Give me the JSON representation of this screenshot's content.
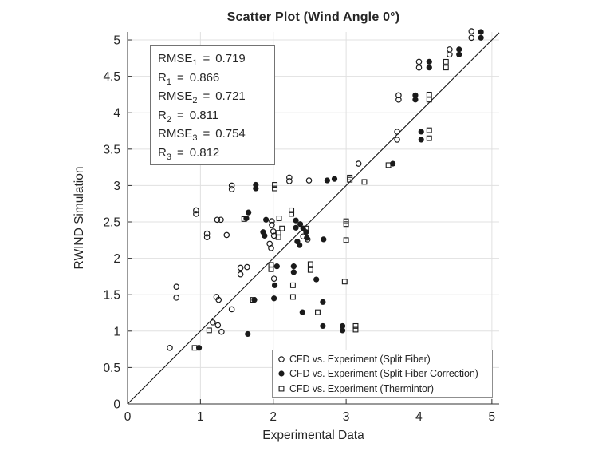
{
  "title": "Scatter Plot (Wind Angle 0°)",
  "stats_box": {
    "lines": [
      {
        "name": "RMSE",
        "sub": "1",
        "eq": "=",
        "value": "0.719"
      },
      {
        "name": "R",
        "sub": "1",
        "eq": "=",
        "value": "0.866"
      },
      {
        "name": "RMSE",
        "sub": "2",
        "eq": "=",
        "value": "0.721"
      },
      {
        "name": "R",
        "sub": "2",
        "eq": "=",
        "value": "0.811"
      },
      {
        "name": "RMSE",
        "sub": "3",
        "eq": "=",
        "value": "0.754"
      },
      {
        "name": "R",
        "sub": "3",
        "eq": "=",
        "value": "0.812"
      }
    ]
  },
  "legend": {
    "items": [
      {
        "marker": "open-circle",
        "label": "CFD vs. Experiment (Split Fiber)"
      },
      {
        "marker": "filled-circle",
        "label": "CFD vs. Experiment (Split Fiber Correction)"
      },
      {
        "marker": "open-square",
        "label": "CFD vs. Experiment (Thermintor)"
      }
    ]
  },
  "colors": {
    "text": "#262626",
    "marker": "#1a1a1a",
    "grid": "#e0e0e0",
    "axis": "#333333",
    "identity_line": "#1a1a1a",
    "stats_border": "#737373",
    "legend_border": "#8f8f8f",
    "background": "#ffffff"
  },
  "chart_data": {
    "type": "scatter",
    "title": "Scatter Plot (Wind Angle 0°)",
    "xlabel": "Experimental Data",
    "ylabel": "RWIND Simulation",
    "xlim": [
      0,
      5.1
    ],
    "ylim": [
      0,
      5.11
    ],
    "xticks": [
      0,
      1,
      2,
      3,
      4,
      5
    ],
    "yticks": [
      0,
      0.5,
      1,
      1.5,
      2,
      2.5,
      3,
      3.5,
      4,
      4.5,
      5
    ],
    "grid": true,
    "legend_position": "inside-bottom-right",
    "identity_line": {
      "from": [
        0,
        0
      ],
      "to": [
        5.1,
        5.1
      ]
    },
    "stats": {
      "RMSE1": 0.719,
      "R1": 0.866,
      "RMSE2": 0.721,
      "R2": 0.811,
      "RMSE3": 0.754,
      "R3": 0.812
    },
    "series": [
      {
        "name": "CFD vs. Experiment (Split Fiber)",
        "marker": "open-circle",
        "points": [
          [
            0.58,
            0.77
          ],
          [
            0.67,
            1.61
          ],
          [
            0.67,
            1.46
          ],
          [
            0.94,
            2.66
          ],
          [
            0.94,
            2.61
          ],
          [
            1.09,
            2.34
          ],
          [
            1.09,
            2.29
          ],
          [
            1.17,
            1.12
          ],
          [
            1.24,
            1.08
          ],
          [
            1.29,
            0.99
          ],
          [
            1.22,
            1.47
          ],
          [
            1.25,
            1.43
          ],
          [
            1.23,
            2.53
          ],
          [
            1.28,
            2.53
          ],
          [
            1.36,
            2.32
          ],
          [
            1.43,
            1.3
          ],
          [
            1.43,
            3.0
          ],
          [
            1.43,
            2.95
          ],
          [
            1.55,
            1.87
          ],
          [
            1.64,
            1.88
          ],
          [
            1.55,
            1.78
          ],
          [
            1.95,
            2.2
          ],
          [
            1.97,
            2.14
          ],
          [
            1.98,
            2.51
          ],
          [
            1.98,
            2.46
          ],
          [
            2.0,
            2.37
          ],
          [
            2.01,
            2.31
          ],
          [
            2.01,
            1.72
          ],
          [
            2.22,
            3.11
          ],
          [
            2.22,
            3.06
          ],
          [
            2.41,
            2.3
          ],
          [
            2.47,
            2.26
          ],
          [
            2.49,
            3.07
          ],
          [
            3.17,
            3.3
          ],
          [
            3.7,
            3.74
          ],
          [
            3.7,
            3.63
          ],
          [
            3.72,
            4.24
          ],
          [
            3.72,
            4.18
          ],
          [
            4.0,
            4.7
          ],
          [
            4.0,
            4.62
          ],
          [
            4.42,
            4.87
          ],
          [
            4.42,
            4.8
          ],
          [
            4.72,
            5.12
          ],
          [
            4.72,
            5.03
          ]
        ]
      },
      {
        "name": "CFD vs. Experiment (Split Fiber Correction)",
        "marker": "filled-circle",
        "points": [
          [
            0.98,
            0.77
          ],
          [
            1.63,
            2.55
          ],
          [
            1.65,
            0.96
          ],
          [
            1.66,
            2.63
          ],
          [
            1.74,
            1.43
          ],
          [
            1.76,
            3.01
          ],
          [
            1.76,
            2.96
          ],
          [
            1.86,
            2.36
          ],
          [
            1.88,
            2.31
          ],
          [
            1.9,
            2.53
          ],
          [
            2.02,
            1.63
          ],
          [
            2.01,
            1.45
          ],
          [
            2.05,
            1.89
          ],
          [
            2.28,
            1.89
          ],
          [
            2.28,
            1.81
          ],
          [
            2.31,
            2.52
          ],
          [
            2.37,
            2.47
          ],
          [
            2.31,
            2.42
          ],
          [
            2.33,
            2.23
          ],
          [
            2.36,
            2.18
          ],
          [
            2.4,
            1.26
          ],
          [
            2.41,
            2.41
          ],
          [
            2.45,
            2.36
          ],
          [
            2.46,
            2.28
          ],
          [
            2.59,
            1.71
          ],
          [
            2.68,
            1.4
          ],
          [
            2.68,
            1.07
          ],
          [
            2.69,
            2.26
          ],
          [
            2.74,
            3.07
          ],
          [
            2.84,
            3.09
          ],
          [
            2.95,
            1.07
          ],
          [
            2.95,
            1.01
          ],
          [
            3.64,
            3.3
          ],
          [
            3.95,
            4.24
          ],
          [
            3.95,
            4.18
          ],
          [
            4.03,
            3.74
          ],
          [
            4.03,
            3.63
          ],
          [
            4.14,
            4.7
          ],
          [
            4.14,
            4.62
          ],
          [
            4.55,
            4.87
          ],
          [
            4.55,
            4.8
          ],
          [
            4.85,
            5.11
          ],
          [
            4.85,
            5.03
          ]
        ]
      },
      {
        "name": "CFD vs. Experiment (Thermintor)",
        "marker": "open-square",
        "points": [
          [
            0.92,
            0.77
          ],
          [
            1.12,
            1.01
          ],
          [
            1.6,
            2.54
          ],
          [
            1.72,
            1.43
          ],
          [
            1.97,
            1.91
          ],
          [
            1.97,
            1.85
          ],
          [
            2.02,
            3.01
          ],
          [
            2.02,
            2.96
          ],
          [
            2.07,
            2.35
          ],
          [
            2.07,
            2.29
          ],
          [
            2.08,
            2.55
          ],
          [
            2.12,
            2.41
          ],
          [
            2.25,
            2.66
          ],
          [
            2.25,
            2.61
          ],
          [
            2.27,
            1.63
          ],
          [
            2.27,
            1.47
          ],
          [
            2.45,
            2.41
          ],
          [
            2.51,
            1.92
          ],
          [
            2.51,
            1.84
          ],
          [
            2.61,
            1.26
          ],
          [
            2.98,
            1.68
          ],
          [
            3.0,
            2.51
          ],
          [
            3.0,
            2.47
          ],
          [
            3.0,
            2.25
          ],
          [
            3.05,
            3.11
          ],
          [
            3.05,
            3.08
          ],
          [
            3.13,
            1.07
          ],
          [
            3.13,
            1.02
          ],
          [
            3.25,
            3.05
          ],
          [
            3.58,
            3.28
          ],
          [
            4.14,
            4.25
          ],
          [
            4.14,
            4.18
          ],
          [
            4.14,
            3.76
          ],
          [
            4.14,
            3.65
          ],
          [
            4.37,
            4.7
          ],
          [
            4.37,
            4.62
          ]
        ]
      }
    ]
  }
}
